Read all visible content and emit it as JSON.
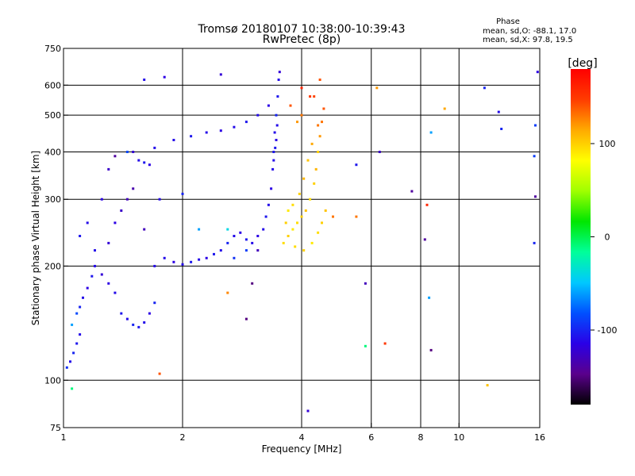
{
  "chart_data": {
    "type": "scatter",
    "title": "Tromsø 20180107 10:38:00-10:39:43",
    "subtitle": "RwPretec (8p)",
    "xlabel": "Frequency [MHz]",
    "ylabel": "Stationary phase Virtual Height [km]",
    "x_scale": "log",
    "y_scale": "log",
    "xlim": [
      1,
      16
    ],
    "ylim": [
      75,
      750
    ],
    "x_ticks": [
      1,
      2,
      4,
      6,
      8,
      10,
      16
    ],
    "y_ticks": [
      75,
      100,
      200,
      300,
      400,
      500,
      600,
      750
    ],
    "x_gridlines": [
      2,
      4,
      6,
      8,
      10
    ],
    "y_gridlines": [
      100,
      200,
      300,
      400,
      500,
      600
    ],
    "grid": true,
    "stats": {
      "header": "Phase",
      "line_o": "mean, sd,O: -88.1, 17.0",
      "line_x": "mean, sd,X:  97.8, 19.5"
    },
    "colorbar": {
      "label": "[deg]",
      "range": [
        -180,
        180
      ],
      "ticks": [
        100,
        0,
        -100
      ],
      "colormap": "rainbow"
    },
    "color_stops": [
      "#000000",
      "#5a008c",
      "#2a00e6",
      "#0050ff",
      "#00c8ff",
      "#00ff9a",
      "#00e600",
      "#a0ff00",
      "#ffff00",
      "#ffaa00",
      "#ff3c00",
      "#ff0000"
    ],
    "series": [
      {
        "mode": "O",
        "points": [
          [
            1.02,
            108,
            -95
          ],
          [
            1.04,
            112,
            -110
          ],
          [
            1.06,
            118,
            -100
          ],
          [
            1.08,
            125,
            -105
          ],
          [
            1.1,
            132,
            -110
          ],
          [
            1.05,
            140,
            -60
          ],
          [
            1.08,
            150,
            -85
          ],
          [
            1.1,
            156,
            -100
          ],
          [
            1.12,
            165,
            -110
          ],
          [
            1.15,
            175,
            -115
          ],
          [
            1.18,
            188,
            -105
          ],
          [
            1.2,
            200,
            -110
          ],
          [
            1.25,
            190,
            -120
          ],
          [
            1.3,
            180,
            -115
          ],
          [
            1.35,
            170,
            -110
          ],
          [
            1.4,
            150,
            -105
          ],
          [
            1.45,
            145,
            -110
          ],
          [
            1.5,
            140,
            -100
          ],
          [
            1.55,
            138,
            -105
          ],
          [
            1.6,
            142,
            -110
          ],
          [
            1.65,
            150,
            -115
          ],
          [
            1.7,
            160,
            -100
          ],
          [
            1.2,
            220,
            -110
          ],
          [
            1.3,
            230,
            -120
          ],
          [
            1.35,
            260,
            -115
          ],
          [
            1.4,
            280,
            -125
          ],
          [
            1.45,
            300,
            -130
          ],
          [
            1.5,
            320,
            -135
          ],
          [
            1.55,
            380,
            -110
          ],
          [
            1.6,
            375,
            -105
          ],
          [
            1.65,
            370,
            -115
          ],
          [
            1.7,
            200,
            -110
          ],
          [
            1.8,
            210,
            -110
          ],
          [
            1.9,
            205,
            -115
          ],
          [
            2.0,
            202,
            -110
          ],
          [
            2.1,
            205,
            -105
          ],
          [
            2.2,
            208,
            -110
          ],
          [
            2.3,
            210,
            -115
          ],
          [
            2.4,
            215,
            -105
          ],
          [
            2.5,
            220,
            -110
          ],
          [
            2.6,
            230,
            -100
          ],
          [
            2.7,
            240,
            -110
          ],
          [
            2.8,
            245,
            -115
          ],
          [
            2.9,
            235,
            -105
          ],
          [
            3.0,
            230,
            -110
          ],
          [
            3.1,
            240,
            -115
          ],
          [
            3.2,
            250,
            -110
          ],
          [
            3.25,
            270,
            -105
          ],
          [
            3.3,
            290,
            -110
          ],
          [
            3.35,
            320,
            -115
          ],
          [
            3.38,
            360,
            -110
          ],
          [
            3.4,
            400,
            -105
          ],
          [
            3.42,
            450,
            -110
          ],
          [
            3.45,
            500,
            -100
          ],
          [
            3.48,
            560,
            -105
          ],
          [
            3.5,
            620,
            -110
          ],
          [
            3.52,
            650,
            -120
          ],
          [
            3.45,
            430,
            -115
          ],
          [
            3.47,
            470,
            -110
          ],
          [
            3.43,
            410,
            -105
          ],
          [
            3.4,
            380,
            -110
          ],
          [
            1.9,
            430,
            -110
          ],
          [
            2.1,
            440,
            -105
          ],
          [
            2.3,
            450,
            -110
          ],
          [
            2.5,
            455,
            -115
          ],
          [
            2.7,
            465,
            -110
          ],
          [
            2.9,
            480,
            -105
          ],
          [
            3.1,
            500,
            -110
          ],
          [
            3.3,
            530,
            -115
          ],
          [
            1.7,
            410,
            -110
          ],
          [
            1.5,
            400,
            -120
          ],
          [
            1.3,
            360,
            -125
          ],
          [
            1.25,
            300,
            -115
          ],
          [
            1.15,
            260,
            -110
          ],
          [
            1.1,
            240,
            -105
          ],
          [
            1.6,
            620,
            -110
          ],
          [
            1.8,
            630,
            -115
          ],
          [
            2.5,
            640,
            -120
          ],
          [
            2.7,
            210,
            -95
          ],
          [
            2.9,
            220,
            -90
          ],
          [
            1.75,
            300,
            -110
          ],
          [
            2.0,
            310,
            -100
          ],
          [
            2.2,
            250,
            -60
          ],
          [
            2.6,
            250,
            -40
          ],
          [
            3.1,
            220,
            -130
          ]
        ]
      },
      {
        "mode": "X",
        "points": [
          [
            3.6,
            230,
            95
          ],
          [
            3.7,
            240,
            100
          ],
          [
            3.8,
            250,
            90
          ],
          [
            3.9,
            260,
            95
          ],
          [
            4.0,
            270,
            100
          ],
          [
            4.1,
            280,
            105
          ],
          [
            4.2,
            300,
            95
          ],
          [
            4.3,
            330,
            100
          ],
          [
            4.35,
            360,
            110
          ],
          [
            4.4,
            400,
            100
          ],
          [
            4.45,
            440,
            120
          ],
          [
            4.5,
            480,
            130
          ],
          [
            4.55,
            520,
            140
          ],
          [
            4.3,
            560,
            145
          ],
          [
            4.0,
            500,
            130
          ],
          [
            3.9,
            480,
            120
          ],
          [
            3.8,
            290,
            95
          ],
          [
            3.95,
            310,
            100
          ],
          [
            4.05,
            340,
            110
          ],
          [
            4.15,
            380,
            105
          ],
          [
            4.25,
            420,
            115
          ],
          [
            3.7,
            280,
            90
          ],
          [
            3.85,
            225,
            95
          ],
          [
            4.05,
            220,
            100
          ],
          [
            4.25,
            230,
            90
          ],
          [
            4.4,
            245,
            95
          ],
          [
            4.5,
            260,
            100
          ],
          [
            4.6,
            280,
            105
          ],
          [
            3.65,
            260,
            100
          ],
          [
            4.4,
            470,
            130
          ],
          [
            4.2,
            560,
            150
          ],
          [
            4.0,
            590,
            160
          ],
          [
            4.45,
            620,
            140
          ],
          [
            3.75,
            530,
            140
          ],
          [
            5.5,
            270,
            130
          ],
          [
            6.2,
            590,
            120
          ],
          [
            9.2,
            520,
            115
          ],
          [
            8.3,
            290,
            160
          ],
          [
            1.75,
            104,
            140
          ],
          [
            11.8,
            97,
            105
          ],
          [
            4.8,
            270,
            130
          ],
          [
            2.6,
            170,
            125
          ],
          [
            6.5,
            125,
            150
          ]
        ]
      },
      {
        "mode": "other",
        "points": [
          [
            1.45,
            400,
            -85
          ],
          [
            1.35,
            390,
            -140
          ],
          [
            1.6,
            250,
            -130
          ],
          [
            5.8,
            180,
            -130
          ],
          [
            6.3,
            400,
            -125
          ],
          [
            7.6,
            315,
            -140
          ],
          [
            8.2,
            235,
            -140
          ],
          [
            8.5,
            120,
            -150
          ],
          [
            8.4,
            165,
            -60
          ],
          [
            5.5,
            370,
            -105
          ],
          [
            2.9,
            145,
            -150
          ],
          [
            3.0,
            180,
            -150
          ],
          [
            4.15,
            83,
            -120
          ],
          [
            12.6,
            510,
            -110
          ],
          [
            12.8,
            460,
            -100
          ],
          [
            15.5,
            230,
            -100
          ],
          [
            15.6,
            470,
            -90
          ],
          [
            15.6,
            305,
            -140
          ],
          [
            11.6,
            590,
            -100
          ],
          [
            15.8,
            650,
            -115
          ],
          [
            15.5,
            390,
            -90
          ],
          [
            1.05,
            95,
            -10
          ],
          [
            5.8,
            123,
            -10
          ],
          [
            8.5,
            450,
            -60
          ]
        ]
      }
    ]
  }
}
